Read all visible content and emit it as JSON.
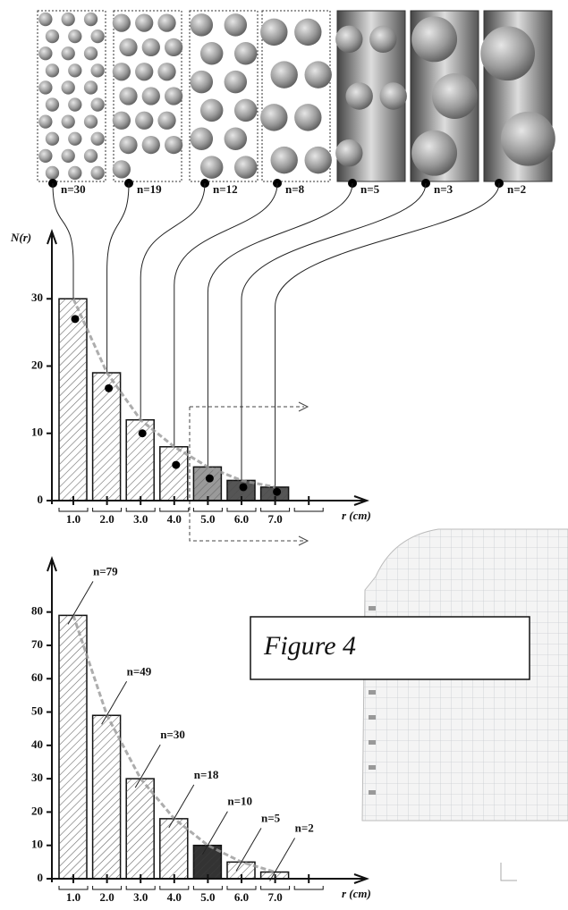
{
  "chart_data": [
    {
      "type": "panels",
      "values": [
        30,
        19,
        12,
        8,
        5,
        3,
        2
      ],
      "value_labels": [
        "n=30",
        "n=19",
        "n=12",
        "n=8",
        "n=5",
        "n=3",
        "n=2"
      ],
      "colors": [
        "#ffffff",
        "#ffffff",
        "#ffffff",
        "#ffffff",
        "#6f6f6f",
        "#6f6f6f",
        "#6f6f6f"
      ]
    },
    {
      "type": "bar",
      "y_label": "N(r)",
      "x_label": "r (cm)",
      "categories": [
        "1.0",
        "2.0",
        "3.0",
        "4.0",
        "5.0",
        "6.0",
        "7.0",
        null
      ],
      "values": [
        30,
        19,
        12,
        8,
        5,
        3,
        2,
        null
      ],
      "colors": [
        "#ffffff",
        "#ffffff",
        "#ffffff",
        "#ffffff",
        "#9a9a9a",
        "#555555",
        "#555555",
        null
      ],
      "points": [
        27,
        16.7,
        10,
        5.3,
        3.3,
        2,
        1.3,
        null
      ],
      "ylim": [
        0,
        40
      ],
      "yticks": [
        0,
        10,
        20,
        30
      ]
    },
    {
      "type": "bar",
      "x_label": "r (cm)",
      "categories": [
        "1.0",
        "2.0",
        "3.0",
        "4.0",
        "5.0",
        "6.0",
        "7.0",
        null
      ],
      "values": [
        79,
        49,
        30,
        18,
        10,
        5,
        2,
        null
      ],
      "value_labels": [
        "n=79",
        "n=49",
        "n=30",
        "n=18",
        "n=10",
        "n=5",
        "n=2",
        null
      ],
      "colors": [
        "#ffffff",
        "#ffffff",
        "#ffffff",
        "#ffffff",
        "#333333",
        "#ffffff",
        "#ffffff",
        null
      ],
      "ylim": [
        0,
        96
      ],
      "yticks": [
        0,
        10,
        20,
        30,
        40,
        50,
        60,
        70,
        80
      ]
    }
  ],
  "figure_label": "Figure 4"
}
